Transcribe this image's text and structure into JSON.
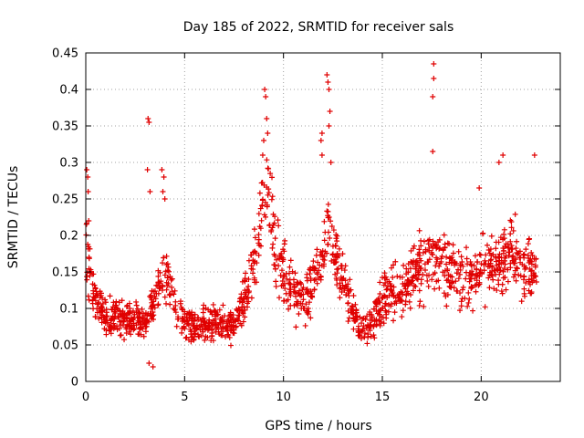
{
  "chart_data": {
    "type": "scatter",
    "title": "Day 185 of 2022, SRMTID for receiver sals",
    "xlabel": "GPS time / hours",
    "ylabel": "SRMTID / TECUs",
    "xlim": [
      0,
      24
    ],
    "ylim": [
      0,
      0.45
    ],
    "x_ticks": [
      0,
      5,
      10,
      15,
      20
    ],
    "x_tick_labels": [
      "0",
      "5",
      "10",
      "15",
      "20"
    ],
    "y_ticks": [
      0,
      0.05,
      0.1,
      0.15,
      0.2,
      0.25,
      0.3,
      0.35,
      0.4,
      0.45
    ],
    "y_tick_labels": [
      "0",
      "0.05",
      "0.1",
      "0.15",
      "0.2",
      "0.25",
      "0.3",
      "0.35",
      "0.4",
      "0.45"
    ],
    "grid": true,
    "marker": "plus",
    "color": "#e00000",
    "series": [
      {
        "name": "SRMTID",
        "trend_x": [
          0,
          0.1,
          0.3,
          0.6,
          1,
          1.5,
          2,
          2.5,
          3,
          3.3,
          3.6,
          4,
          4.3,
          4.6,
          5,
          5.5,
          6,
          6.5,
          7,
          7.5,
          8,
          8.3,
          8.6,
          8.9,
          9.1,
          9.3,
          9.6,
          10,
          10.5,
          11,
          11.5,
          12,
          12.3,
          12.6,
          13,
          13.5,
          13.8,
          14.2,
          14.6,
          15,
          15.5,
          16,
          16.5,
          17,
          17.5,
          18,
          18.5,
          19,
          19.5,
          20,
          20.5,
          21,
          21.5,
          22,
          22.5,
          22.8
        ],
        "trend_y": [
          0.2,
          0.17,
          0.13,
          0.11,
          0.09,
          0.085,
          0.09,
          0.08,
          0.08,
          0.1,
          0.12,
          0.15,
          0.13,
          0.09,
          0.08,
          0.075,
          0.08,
          0.085,
          0.075,
          0.08,
          0.11,
          0.14,
          0.17,
          0.22,
          0.26,
          0.23,
          0.18,
          0.15,
          0.12,
          0.11,
          0.13,
          0.17,
          0.2,
          0.18,
          0.14,
          0.1,
          0.075,
          0.07,
          0.09,
          0.11,
          0.12,
          0.13,
          0.15,
          0.16,
          0.17,
          0.16,
          0.15,
          0.15,
          0.14,
          0.15,
          0.16,
          0.16,
          0.17,
          0.16,
          0.15,
          0.15
        ],
        "n_points": 1500,
        "outliers": [
          {
            "x": 0.05,
            "y": 0.29
          },
          {
            "x": 0.1,
            "y": 0.28
          },
          {
            "x": 0.12,
            "y": 0.26
          },
          {
            "x": 0.15,
            "y": 0.22
          },
          {
            "x": 3.15,
            "y": 0.36
          },
          {
            "x": 3.2,
            "y": 0.355
          },
          {
            "x": 3.12,
            "y": 0.29
          },
          {
            "x": 3.25,
            "y": 0.26
          },
          {
            "x": 3.2,
            "y": 0.025
          },
          {
            "x": 3.4,
            "y": 0.02
          },
          {
            "x": 3.9,
            "y": 0.26
          },
          {
            "x": 3.95,
            "y": 0.28
          },
          {
            "x": 3.85,
            "y": 0.29
          },
          {
            "x": 4.0,
            "y": 0.25
          },
          {
            "x": 9.05,
            "y": 0.4
          },
          {
            "x": 9.1,
            "y": 0.39
          },
          {
            "x": 9.15,
            "y": 0.36
          },
          {
            "x": 9.0,
            "y": 0.33
          },
          {
            "x": 8.95,
            "y": 0.31
          },
          {
            "x": 9.2,
            "y": 0.34
          },
          {
            "x": 12.2,
            "y": 0.42
          },
          {
            "x": 12.25,
            "y": 0.41
          },
          {
            "x": 12.3,
            "y": 0.4
          },
          {
            "x": 12.35,
            "y": 0.37
          },
          {
            "x": 12.3,
            "y": 0.35
          },
          {
            "x": 11.95,
            "y": 0.34
          },
          {
            "x": 11.9,
            "y": 0.33
          },
          {
            "x": 11.95,
            "y": 0.31
          },
          {
            "x": 12.4,
            "y": 0.3
          },
          {
            "x": 17.6,
            "y": 0.435
          },
          {
            "x": 17.6,
            "y": 0.415
          },
          {
            "x": 17.55,
            "y": 0.39
          },
          {
            "x": 17.55,
            "y": 0.315
          },
          {
            "x": 21.1,
            "y": 0.31
          },
          {
            "x": 20.9,
            "y": 0.3
          },
          {
            "x": 22.7,
            "y": 0.31
          },
          {
            "x": 19.9,
            "y": 0.265
          }
        ]
      }
    ]
  }
}
